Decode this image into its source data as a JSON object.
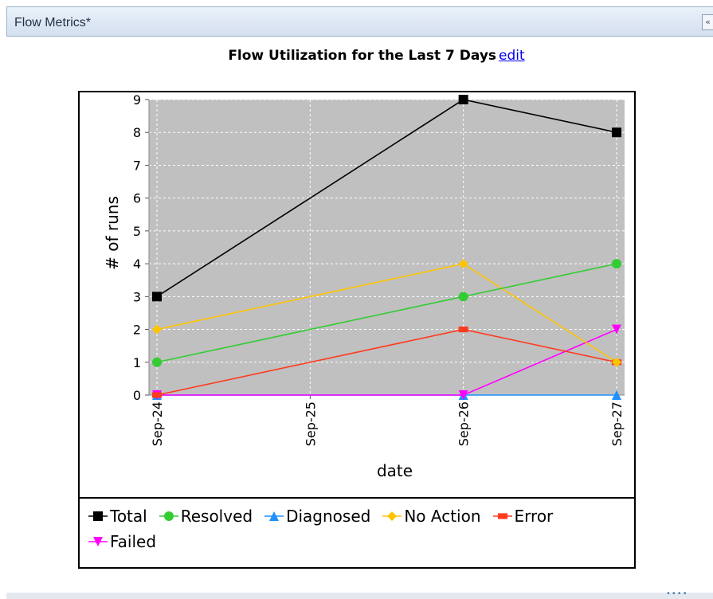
{
  "panel": {
    "title": "Flow Metrics*",
    "collapse_icon": "double-chevron-down-icon"
  },
  "chart_title": "Flow Utilization for the Last 7 Days",
  "edit_link": "edit",
  "chart_data": {
    "type": "line",
    "title": "Flow Utilization for the Last 7 Days",
    "xlabel": "date",
    "ylabel": "# of runs",
    "categories": [
      "Sep-24",
      "Sep-25",
      "Sep-26",
      "Sep-27"
    ],
    "ylim": [
      0,
      9
    ],
    "yticks": [
      0,
      1,
      2,
      3,
      4,
      5,
      6,
      7,
      8,
      9
    ],
    "grid": true,
    "plot_background": "#c0c0c0",
    "legend_position": "bottom",
    "series": [
      {
        "name": "Total",
        "color": "#000000",
        "marker": "square",
        "points": [
          [
            0,
            3
          ],
          [
            2,
            9
          ],
          [
            3,
            8
          ]
        ]
      },
      {
        "name": "Resolved",
        "color": "#33cc33",
        "marker": "circle",
        "points": [
          [
            0,
            1
          ],
          [
            2,
            3
          ],
          [
            3,
            4
          ]
        ]
      },
      {
        "name": "Diagnosed",
        "color": "#1e90ff",
        "marker": "triangle-up",
        "points": [
          [
            0,
            0
          ],
          [
            2,
            0
          ],
          [
            3,
            0
          ]
        ]
      },
      {
        "name": "No Action",
        "color": "#ffc400",
        "marker": "diamond",
        "points": [
          [
            0,
            2
          ],
          [
            2,
            4
          ],
          [
            3,
            1
          ]
        ]
      },
      {
        "name": "Error",
        "color": "#ff3b1f",
        "marker": "rect",
        "points": [
          [
            0,
            0
          ],
          [
            2,
            2
          ],
          [
            3,
            1
          ]
        ]
      },
      {
        "name": "Failed",
        "color": "#ff00ff",
        "marker": "triangle-down",
        "points": [
          [
            0,
            0
          ],
          [
            2,
            0
          ],
          [
            3,
            2
          ]
        ]
      }
    ]
  }
}
